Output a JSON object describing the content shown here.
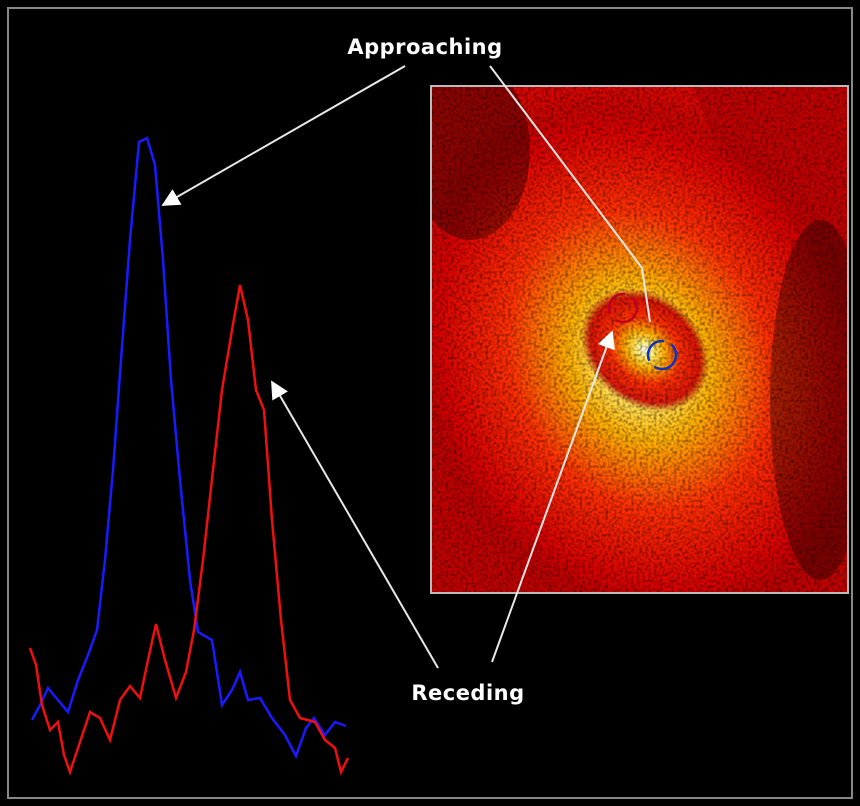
{
  "labels": {
    "approaching": "Approaching",
    "receding": "Receding"
  }
}
